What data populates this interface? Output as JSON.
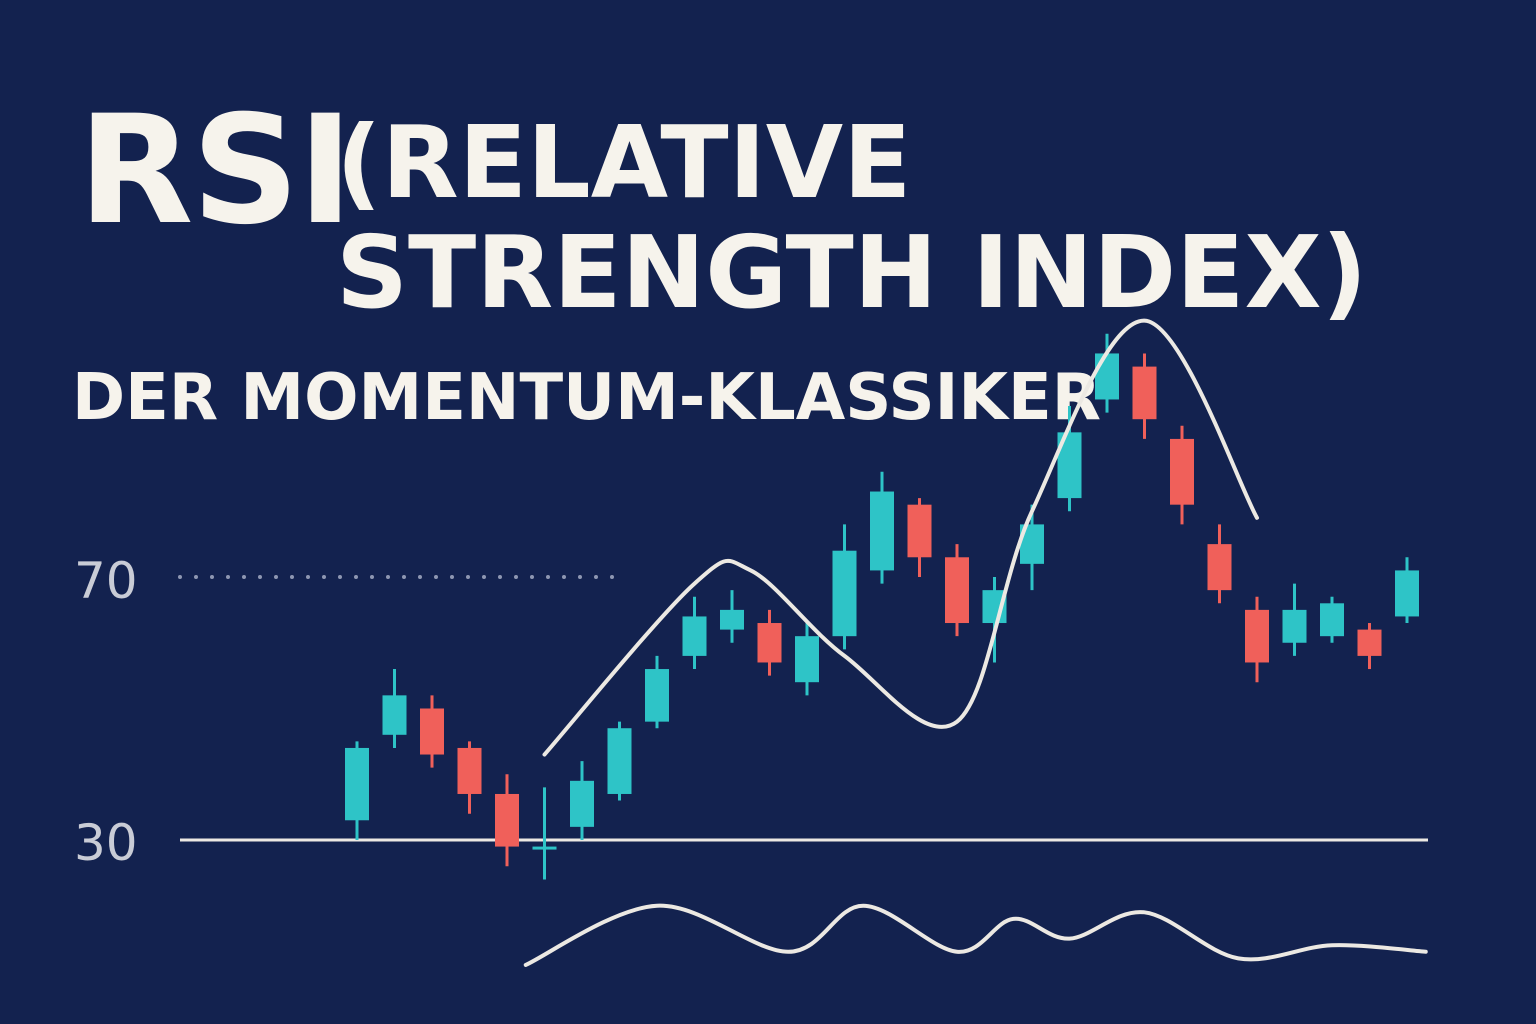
{
  "header": {
    "title_main": "RSI",
    "title_rest": "(RELATIVE STRENGTH INDEX)",
    "subtitle": "DER MOMENTUM-KLASSIKER"
  },
  "levels": {
    "upper": "70",
    "lower": "30"
  },
  "colors": {
    "background": "#13224f",
    "bullish": "#2ec4c7",
    "bearish": "#f0605a",
    "text": "#f6f3ec",
    "line": "#ece9e3",
    "level_label": "#c9ccd6"
  },
  "chart_data": {
    "type": "candlestick",
    "price_range": [
      0,
      100
    ],
    "reference_levels": [
      70,
      30
    ],
    "candles": [
      {
        "open": 33,
        "close": 44,
        "high": 45,
        "low": 30
      },
      {
        "open": 46,
        "close": 52,
        "high": 56,
        "low": 44
      },
      {
        "open": 50,
        "close": 43,
        "high": 52,
        "low": 41
      },
      {
        "open": 44,
        "close": 37,
        "high": 45,
        "low": 34
      },
      {
        "open": 37,
        "close": 29,
        "high": 40,
        "low": 26
      },
      {
        "open": 29,
        "close": 29,
        "high": 38,
        "low": 24
      },
      {
        "open": 32,
        "close": 39,
        "high": 42,
        "low": 30
      },
      {
        "open": 37,
        "close": 47,
        "high": 48,
        "low": 36
      },
      {
        "open": 48,
        "close": 56,
        "high": 58,
        "low": 47
      },
      {
        "open": 58,
        "close": 64,
        "high": 67,
        "low": 56
      },
      {
        "open": 62,
        "close": 65,
        "high": 68,
        "low": 60
      },
      {
        "open": 63,
        "close": 57,
        "high": 65,
        "low": 55
      },
      {
        "open": 54,
        "close": 61,
        "high": 63,
        "low": 52
      },
      {
        "open": 61,
        "close": 74,
        "high": 78,
        "low": 59
      },
      {
        "open": 71,
        "close": 83,
        "high": 86,
        "low": 69
      },
      {
        "open": 81,
        "close": 73,
        "high": 82,
        "low": 70
      },
      {
        "open": 73,
        "close": 63,
        "high": 75,
        "low": 61
      },
      {
        "open": 63,
        "close": 68,
        "high": 70,
        "low": 57
      },
      {
        "open": 72,
        "close": 78,
        "high": 81,
        "low": 68
      },
      {
        "open": 82,
        "close": 92,
        "high": 96,
        "low": 80
      },
      {
        "open": 97,
        "close": 104,
        "high": 107,
        "low": 95
      },
      {
        "open": 102,
        "close": 94,
        "high": 104,
        "low": 91
      },
      {
        "open": 91,
        "close": 81,
        "high": 93,
        "low": 78
      },
      {
        "open": 75,
        "close": 68,
        "high": 78,
        "low": 66
      },
      {
        "open": 65,
        "close": 57,
        "high": 67,
        "low": 54
      },
      {
        "open": 60,
        "close": 65,
        "high": 69,
        "low": 58
      },
      {
        "open": 61,
        "close": 66,
        "high": 67,
        "low": 60
      },
      {
        "open": 62,
        "close": 58,
        "high": 63,
        "low": 56
      },
      {
        "open": 64,
        "close": 71,
        "high": 73,
        "low": 63
      }
    ],
    "overlay_curve": [
      {
        "x": 5,
        "y": 43
      },
      {
        "x": 9,
        "y": 69
      },
      {
        "x": 10.5,
        "y": 71
      },
      {
        "x": 13,
        "y": 58
      },
      {
        "x": 16,
        "y": 48
      },
      {
        "x": 18,
        "y": 80
      },
      {
        "x": 21,
        "y": 109
      },
      {
        "x": 24,
        "y": 79
      }
    ],
    "lower_oscillator": [
      {
        "x": 4.5,
        "y": 11
      },
      {
        "x": 8,
        "y": 20
      },
      {
        "x": 11.5,
        "y": 13
      },
      {
        "x": 13.5,
        "y": 20
      },
      {
        "x": 16,
        "y": 13
      },
      {
        "x": 17.5,
        "y": 18
      },
      {
        "x": 19,
        "y": 15
      },
      {
        "x": 21,
        "y": 19
      },
      {
        "x": 23.5,
        "y": 12
      },
      {
        "x": 26,
        "y": 14
      },
      {
        "x": 28.5,
        "y": 13
      }
    ]
  }
}
